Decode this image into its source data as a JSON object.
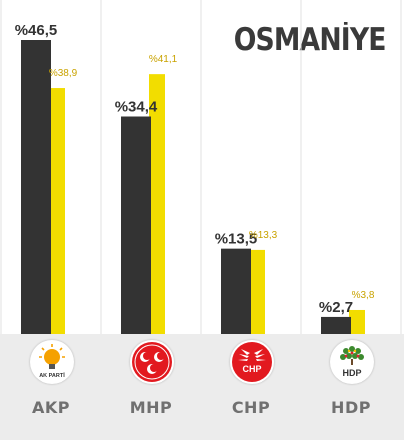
{
  "chart_data": {
    "type": "bar",
    "title": "OSMANİYE",
    "categories": [
      "AKP",
      "MHP",
      "CHP",
      "HDP"
    ],
    "series": [
      {
        "values": [
          46.5,
          34.4,
          13.5,
          2.7
        ],
        "labels": [
          "%46,5",
          "%34,4",
          "%13,5",
          "%2,7"
        ],
        "color": "#333333"
      },
      {
        "values": [
          38.9,
          41.1,
          13.3,
          3.8
        ],
        "labels": [
          "%38,9",
          "%41,1",
          "%13,3",
          "%3,8"
        ],
        "color": "#f2dd00"
      }
    ],
    "ylim": [
      0,
      46.5
    ],
    "grid": false,
    "legend": "none"
  },
  "logos": [
    {
      "party": "AKP",
      "icon": "akp-bulb-icon",
      "text": "AK PARTİ",
      "color": "#f5a100"
    },
    {
      "party": "MHP",
      "icon": "mhp-crescents-icon",
      "text": "",
      "color": "#e2191f"
    },
    {
      "party": "CHP",
      "icon": "chp-arrows-icon",
      "text": "CHP",
      "color": "#e2191f"
    },
    {
      "party": "HDP",
      "icon": "hdp-tree-icon",
      "text": "HDP",
      "color": "#3c8a2e"
    }
  ],
  "colors": {
    "separator": "#e1e1e1",
    "band": "#ececec",
    "name": "#707070"
  }
}
